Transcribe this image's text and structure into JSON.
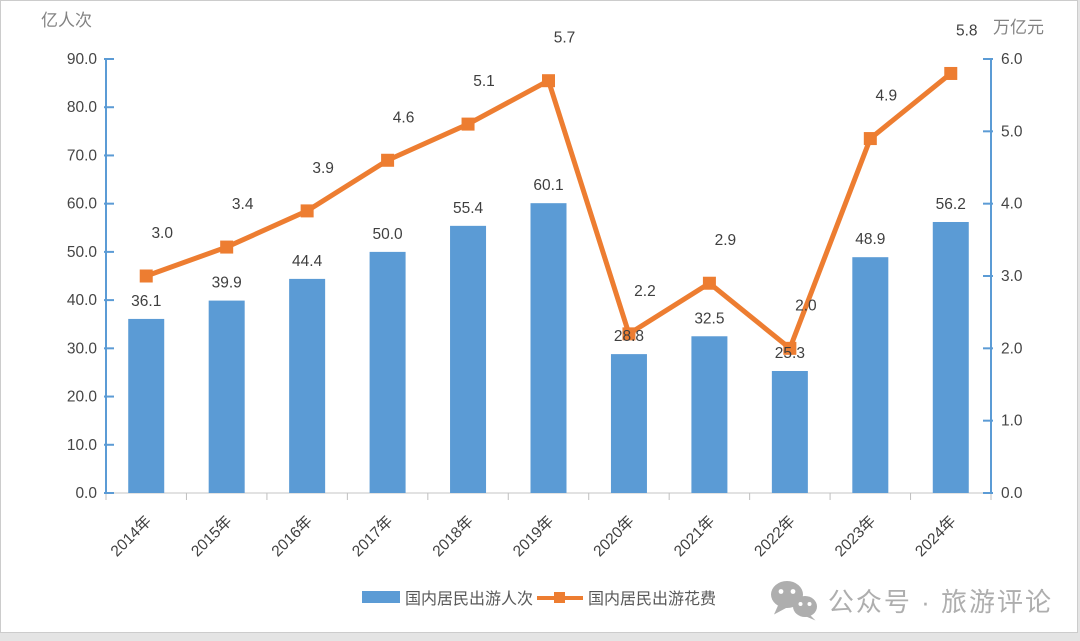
{
  "frame": {
    "background": "#ffffff",
    "outer_background": "#e4e4e4",
    "border_color": "#cccccc"
  },
  "chart_data": {
    "type": "bar",
    "subtype": "combo-bar-line-dual-axis",
    "title": "",
    "categories": [
      "2014年",
      "2015年",
      "2016年",
      "2017年",
      "2018年",
      "2019年",
      "2020年",
      "2021年",
      "2022年",
      "2023年",
      "2024年"
    ],
    "series": [
      {
        "name": "国内居民出游人次",
        "type": "bar",
        "axis": "left",
        "color": "#5B9BD5",
        "values": [
          36.1,
          39.9,
          44.4,
          50.0,
          55.4,
          60.1,
          28.8,
          32.5,
          25.3,
          48.9,
          56.2
        ]
      },
      {
        "name": "国内居民出游花费",
        "type": "line",
        "axis": "right",
        "color": "#ED7D31",
        "marker": "square",
        "values": [
          3.0,
          3.4,
          3.9,
          4.6,
          5.1,
          5.7,
          2.2,
          2.9,
          2.0,
          4.9,
          5.8
        ]
      }
    ],
    "left_axis": {
      "title": "亿人次",
      "min": 0,
      "max": 90,
      "step": 10,
      "color": "#5B9BD5",
      "tick_format": "0.0"
    },
    "right_axis": {
      "title": "万亿元",
      "min": 0,
      "max": 6,
      "step": 1,
      "color": "#5B9BD5",
      "tick_format": "0.0"
    },
    "x_axis": {
      "color": "#d9d9d9",
      "tick_color": "#bfbfbf",
      "label_rotation": -45
    },
    "grid": false,
    "data_labels": true,
    "data_label_color": "#3f3f3f",
    "tick_label_color": "#454545",
    "axis_title_color": "#838383",
    "legend_position": "bottom"
  },
  "legend": {
    "text_color": "#595959"
  },
  "watermark": {
    "icon": "wechat-icon",
    "text": "公众号 · 旅游评论",
    "color": "#aeaeae"
  }
}
